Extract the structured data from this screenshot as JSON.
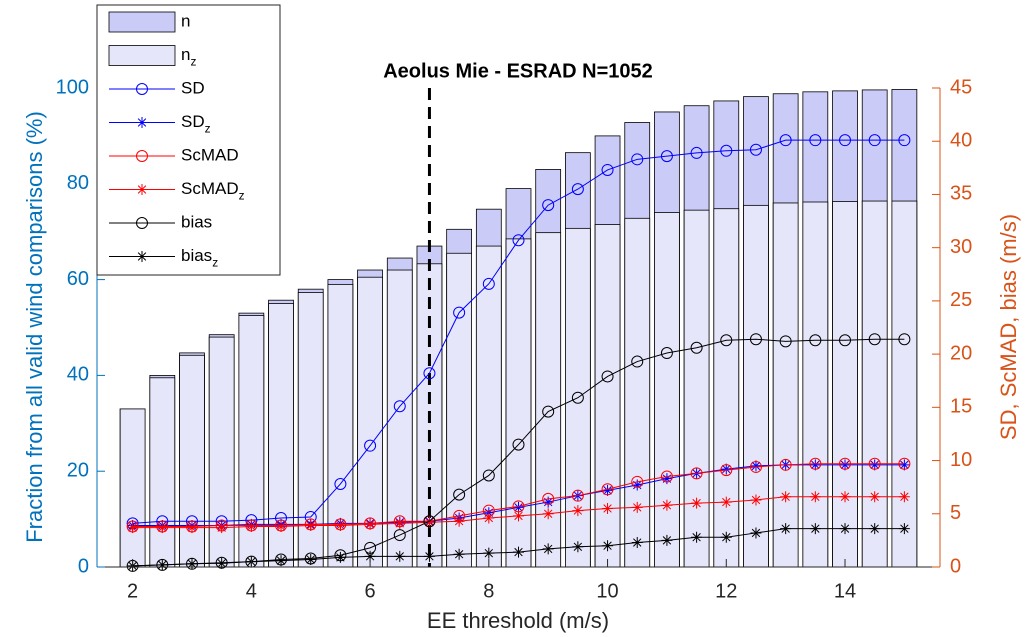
{
  "chart_data": {
    "type": "bar_line",
    "title": "Aeolus Mie - ESRAD N=1052",
    "xlabel": "EE threshold (m/s)",
    "ylabel": "Fraction from all valid wind comparisons (%)",
    "y2label": "SD, ScMAD, bias (m/s)",
    "x": [
      2,
      2.5,
      3,
      3.5,
      4,
      4.5,
      5,
      5.5,
      6,
      6.5,
      7,
      7.5,
      8,
      8.5,
      9,
      9.5,
      10,
      10.5,
      11,
      11.5,
      12,
      12.5,
      13,
      13.5,
      14,
      14.5,
      15
    ],
    "xlim": [
      1.4,
      15.6
    ],
    "xticks": [
      2,
      4,
      6,
      8,
      10,
      12,
      14
    ],
    "ylim": [
      0,
      100
    ],
    "yticks": [
      0,
      20,
      40,
      60,
      80,
      100
    ],
    "y2lim": [
      0,
      45
    ],
    "y2ticks": [
      0,
      5,
      10,
      15,
      20,
      25,
      30,
      35,
      40,
      45
    ],
    "y_color": "#0072bd",
    "y2_color": "#d95319",
    "legend": "upper left",
    "vline": 7,
    "series": [
      {
        "name": "n",
        "kind": "bar",
        "color": "#cbcbf7",
        "values": [
          33,
          40,
          44.7,
          48.5,
          53,
          55.7,
          58,
          60,
          62,
          64.5,
          67,
          70.5,
          74.7,
          79,
          83,
          86.5,
          90,
          92.8,
          95,
          96.3,
          97.3,
          98.2,
          98.8,
          99.2,
          99.4,
          99.6,
          99.7
        ]
      },
      {
        "name": "n_z",
        "kind": "bar",
        "color": "#e6e6fa",
        "values": [
          33,
          39.5,
          44.2,
          48,
          52.5,
          55,
          57.3,
          59,
          60.5,
          62,
          63.3,
          65.5,
          67,
          68.5,
          69.8,
          70.7,
          71.5,
          72.8,
          74,
          74.5,
          74.8,
          75.5,
          76,
          76.2,
          76.3,
          76.4,
          76.4
        ]
      },
      {
        "name": "SD",
        "kind": "line",
        "marker": "o",
        "axis": "y2",
        "color": "#0000ff",
        "values": [
          4.1,
          4.3,
          4.3,
          4.3,
          4.4,
          4.6,
          4.7,
          7.8,
          11.4,
          15.1,
          18.2,
          23.9,
          26.6,
          30.7,
          34.0,
          35.5,
          37.3,
          38.3,
          38.6,
          38.9,
          39.1,
          39.2,
          40.1,
          40.1,
          40.1,
          40.1,
          40.1
        ]
      },
      {
        "name": "SD_z",
        "kind": "line",
        "marker": "*",
        "axis": "y2",
        "color": "#0000ff",
        "values": [
          3.9,
          3.9,
          3.9,
          3.9,
          4.0,
          4.0,
          4.0,
          4.1,
          4.1,
          4.2,
          4.3,
          4.6,
          5.1,
          5.6,
          6.1,
          6.7,
          7.2,
          7.7,
          8.3,
          8.8,
          9.2,
          9.5,
          9.6,
          9.6,
          9.6,
          9.6,
          9.6
        ]
      },
      {
        "name": "ScMAD",
        "kind": "line",
        "marker": "o",
        "axis": "y2",
        "color": "#ff0000",
        "values": [
          3.8,
          3.8,
          3.8,
          3.9,
          3.9,
          3.9,
          4.0,
          4.0,
          4.1,
          4.3,
          4.3,
          4.8,
          5.3,
          5.7,
          6.4,
          6.7,
          7.3,
          8.0,
          8.5,
          8.8,
          9.1,
          9.4,
          9.6,
          9.7,
          9.7,
          9.7,
          9.7
        ]
      },
      {
        "name": "ScMAD_z",
        "kind": "line",
        "marker": "*",
        "axis": "y2",
        "color": "#ff0000",
        "values": [
          3.7,
          3.7,
          3.7,
          3.7,
          3.8,
          3.8,
          3.9,
          3.9,
          4.0,
          4.1,
          4.2,
          4.3,
          4.6,
          4.8,
          5.0,
          5.3,
          5.5,
          5.6,
          5.8,
          6.0,
          6.1,
          6.3,
          6.6,
          6.6,
          6.6,
          6.6,
          6.6
        ]
      },
      {
        "name": "bias",
        "kind": "line",
        "marker": "o",
        "axis": "y2",
        "color": "#000000",
        "values": [
          0.1,
          0.2,
          0.3,
          0.4,
          0.5,
          0.7,
          0.8,
          1.1,
          1.8,
          3.0,
          4.3,
          6.8,
          8.6,
          11.5,
          14.6,
          15.9,
          17.9,
          19.3,
          20.1,
          20.6,
          21.3,
          21.4,
          21.2,
          21.3,
          21.3,
          21.4,
          21.4
        ]
      },
      {
        "name": "bias_z",
        "kind": "line",
        "marker": "*",
        "axis": "y2",
        "color": "#000000",
        "values": [
          0.1,
          0.2,
          0.3,
          0.35,
          0.5,
          0.6,
          0.7,
          0.9,
          1.0,
          1.0,
          1.0,
          1.2,
          1.3,
          1.4,
          1.7,
          1.9,
          2.0,
          2.3,
          2.5,
          2.8,
          2.8,
          3.2,
          3.6,
          3.6,
          3.6,
          3.6,
          3.6
        ]
      }
    ]
  }
}
